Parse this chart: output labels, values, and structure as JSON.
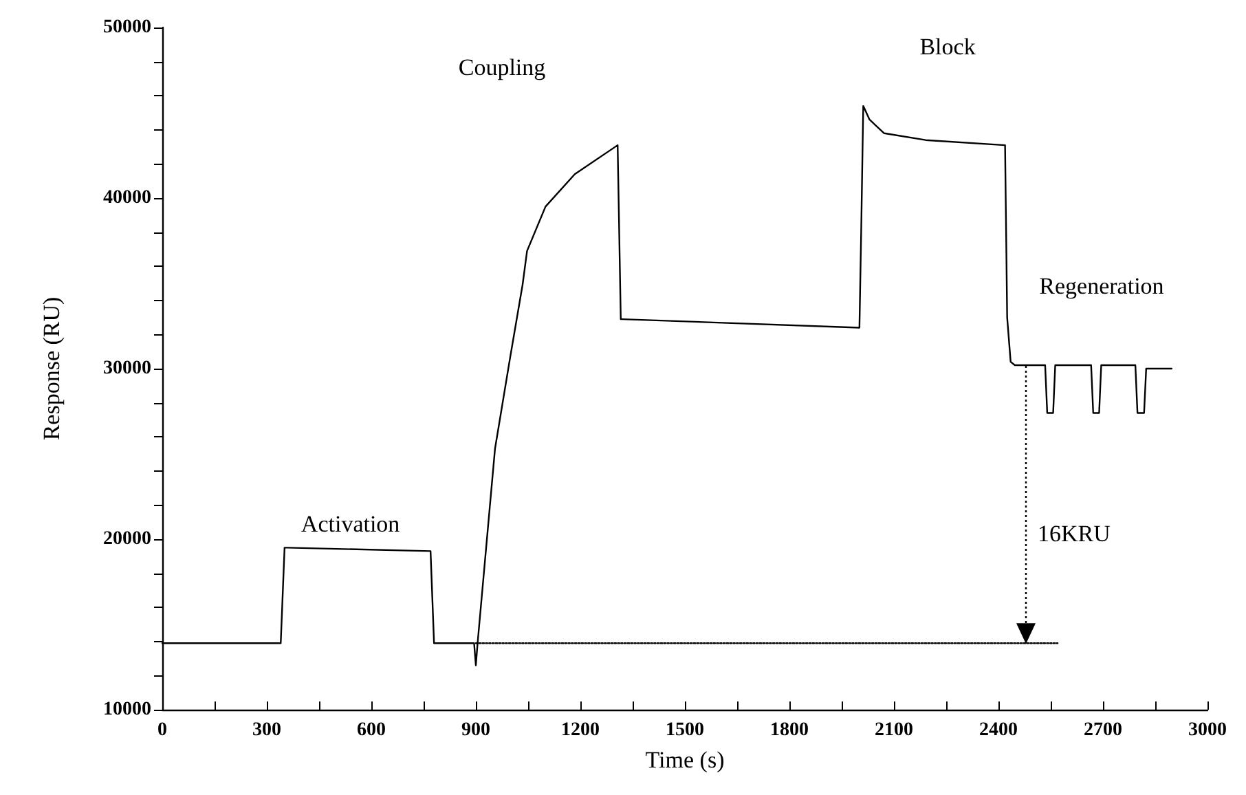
{
  "chart_data": {
    "type": "line",
    "xlabel": "Time (s)",
    "ylabel": "Response (RU)",
    "xlim": [
      0,
      3000
    ],
    "xticks": [
      0,
      {
        "value": 150,
        "label": null
      },
      300,
      {
        "value": 450,
        "label": null
      },
      600,
      {
        "value": 750,
        "label": null
      },
      900,
      {
        "value": 1050,
        "label": null
      },
      1200,
      {
        "value": 1350,
        "label": null
      },
      1500,
      {
        "value": 1650,
        "label": null
      },
      1800,
      {
        "value": 1950,
        "label": null
      },
      2100,
      {
        "value": 2250,
        "label": null
      },
      2400,
      {
        "value": 2550,
        "label": null
      },
      2700,
      {
        "value": 2850,
        "label": null
      },
      3000
    ],
    "ylim": [
      10000,
      50000
    ],
    "yticks": [
      10000,
      {
        "value": 12000,
        "label": null
      },
      {
        "value": 14000,
        "label": null
      },
      {
        "value": 16000,
        "label": null
      },
      {
        "value": 18000,
        "label": null
      },
      20000,
      {
        "value": 22000,
        "label": null
      },
      {
        "value": 24000,
        "label": null
      },
      {
        "value": 26000,
        "label": null
      },
      {
        "value": 28000,
        "label": null
      },
      30000,
      {
        "value": 32000,
        "label": null
      },
      {
        "value": 34000,
        "label": null
      },
      {
        "value": 36000,
        "label": null
      },
      {
        "value": 38000,
        "label": null
      },
      40000,
      {
        "value": 42000,
        "label": null
      },
      {
        "value": 44000,
        "label": null
      },
      {
        "value": 46000,
        "label": null
      },
      {
        "value": 48000,
        "label": null
      },
      50000
    ],
    "series": [
      {
        "color": "#000000",
        "line_style": "solid",
        "x": [
          0,
          340,
          351,
          360,
          770,
          780,
          800,
          895,
          900,
          905,
          955,
          998,
          1034,
          1047,
          1100,
          1184,
          1307,
          1316,
          1320,
          2001,
          2006,
          2012,
          2030,
          2072,
          2191,
          2419,
          2425,
          2435,
          2447,
          2534,
          2540,
          2557,
          2563,
          2666,
          2672,
          2689,
          2695,
          2793,
          2799,
          2818,
          2824,
          2897
        ],
        "values": [
          13900,
          13900,
          19500,
          19500,
          19300,
          13900,
          13900,
          13900,
          12600,
          13900,
          25300,
          30600,
          34900,
          36900,
          39500,
          41400,
          43100,
          32900,
          32900,
          32400,
          38000,
          45400,
          44600,
          43800,
          43400,
          43100,
          33000,
          30400,
          30200,
          30200,
          27400,
          27400,
          30200,
          30200,
          27400,
          27400,
          30200,
          30200,
          27400,
          27400,
          30000,
          30000
        ]
      },
      {
        "color": "#000000",
        "line_style": "dotted",
        "x": [
          900,
          2570
        ],
        "values": [
          13900,
          13900
        ]
      }
    ],
    "annotations": [
      "Activation",
      "Coupling",
      "Block",
      "Regeneration",
      "16KRU"
    ]
  }
}
